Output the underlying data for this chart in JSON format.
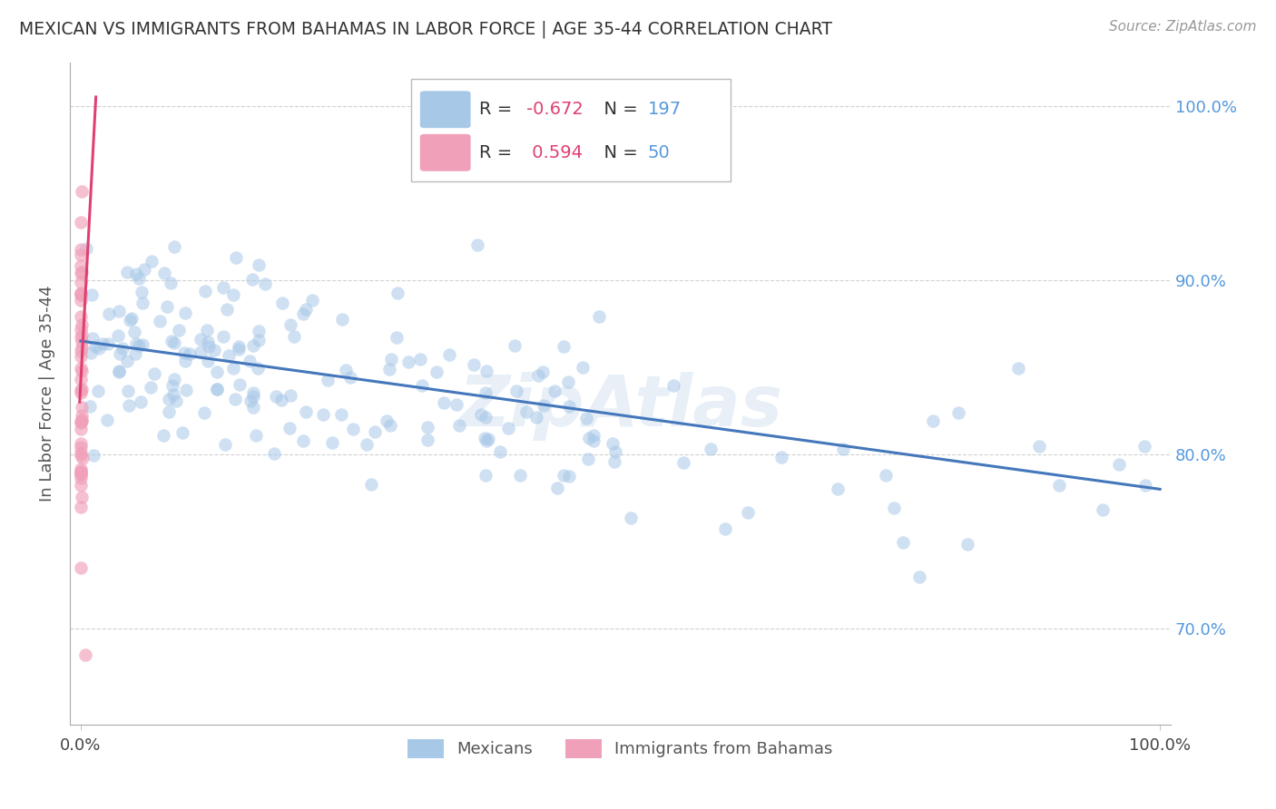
{
  "title": "MEXICAN VS IMMIGRANTS FROM BAHAMAS IN LABOR FORCE | AGE 35-44 CORRELATION CHART",
  "source_text": "Source: ZipAtlas.com",
  "ylabel": "In Labor Force | Age 35-44",
  "legend_blue_label": "Mexicans",
  "legend_pink_label": "Immigrants from Bahamas",
  "blue_R": "-0.672",
  "blue_N": "197",
  "pink_R": "0.594",
  "pink_N": "50",
  "blue_color": "#a8c8e8",
  "blue_line_color": "#4477bb",
  "pink_color": "#f0a0b8",
  "pink_line_color": "#e04070",
  "background_color": "#ffffff",
  "grid_color": "#cccccc",
  "title_color": "#333333",
  "tick_label_color_right": "#5599dd",
  "watermark_text": "ZipAtlas",
  "xlim": [
    -0.01,
    1.01
  ],
  "ylim": [
    0.645,
    1.025
  ],
  "yticks": [
    0.7,
    0.8,
    0.9,
    1.0
  ],
  "ytick_labels": [
    "70.0%",
    "80.0%",
    "90.0%",
    "100.0%"
  ],
  "blue_line_x0": 0.0,
  "blue_line_x1": 1.0,
  "blue_line_y0": 0.865,
  "blue_line_y1": 0.78,
  "pink_line_x0": -0.001,
  "pink_line_x1": 0.014,
  "pink_line_y0": 0.83,
  "pink_line_y1": 1.005
}
